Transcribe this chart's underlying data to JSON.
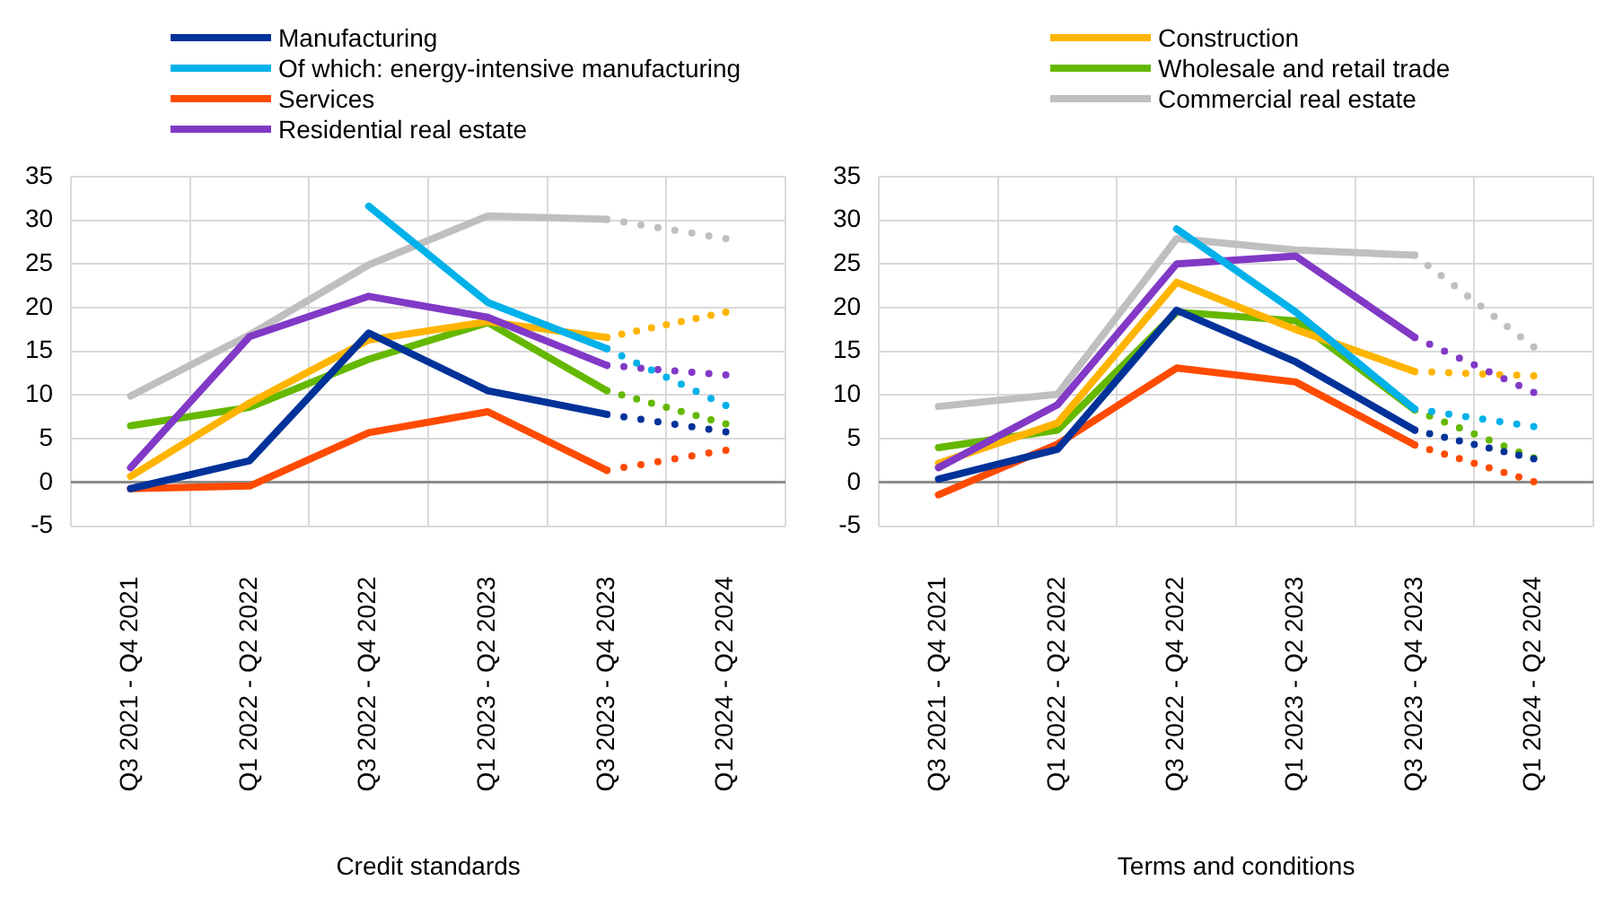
{
  "chart_data": [
    {
      "type": "line",
      "xlabel": "Credit standards",
      "categories": [
        "Q3 2021 - Q4 2021",
        "Q1 2022 - Q2 2022",
        "Q3 2022 - Q4 2022",
        "Q1 2023 - Q2 2023",
        "Q3 2023 - Q4 2023",
        "Q1 2024 - Q2 2024"
      ],
      "ylim": [
        -5,
        35
      ],
      "yticks": [
        -5,
        0,
        5,
        10,
        15,
        20,
        25,
        30,
        35
      ],
      "grid": true,
      "legend": "top",
      "line_style": "solid",
      "series": [
        {
          "name": "Manufacturing",
          "color": "#003299",
          "values": [
            -0.7,
            2.5,
            17.1,
            10.5,
            7.8,
            null
          ]
        },
        {
          "name": "Of which: energy-intensive manufacturing",
          "color": "#00b1ea",
          "values": [
            null,
            null,
            31.6,
            20.6,
            15.3,
            null
          ]
        },
        {
          "name": "Services",
          "color": "#ff4b00",
          "values": [
            -0.7,
            -0.4,
            5.7,
            8.1,
            1.4,
            null
          ]
        },
        {
          "name": "Residential real estate",
          "color": "#8139c6",
          "values": [
            1.7,
            16.7,
            21.3,
            18.9,
            13.4,
            null
          ]
        },
        {
          "name": "Construction",
          "color": "#ffb400",
          "values": [
            0.7,
            9.1,
            16.3,
            18.4,
            16.6,
            null
          ]
        },
        {
          "name": "Wholesale and retail trade",
          "color": "#65b800",
          "values": [
            6.5,
            8.6,
            14.1,
            18.3,
            10.5,
            null
          ]
        },
        {
          "name": "Commercial real estate",
          "color": "#bfbfbf",
          "values": [
            9.9,
            16.9,
            24.9,
            30.5,
            30.1,
            null
          ]
        },
        {
          "color": "#003299",
          "line_style": "dotted",
          "values": [
            null,
            null,
            null,
            null,
            7.8,
            5.8
          ]
        },
        {
          "color": "#00b1ea",
          "line_style": "dotted",
          "values": [
            null,
            null,
            null,
            null,
            15.3,
            8.8
          ]
        },
        {
          "color": "#ff4b00",
          "line_style": "dotted",
          "values": [
            null,
            null,
            null,
            null,
            1.4,
            3.7
          ]
        },
        {
          "color": "#8139c6",
          "line_style": "dotted",
          "values": [
            null,
            null,
            null,
            null,
            13.4,
            12.3
          ]
        },
        {
          "color": "#ffb400",
          "line_style": "dotted",
          "values": [
            null,
            null,
            null,
            null,
            16.6,
            19.5
          ]
        },
        {
          "color": "#65b800",
          "line_style": "dotted",
          "values": [
            null,
            null,
            null,
            null,
            10.5,
            6.7
          ]
        },
        {
          "color": "#bfbfbf",
          "line_style": "dotted",
          "values": [
            null,
            null,
            null,
            null,
            30.1,
            27.9
          ]
        }
      ]
    },
    {
      "type": "line",
      "xlabel": "Terms and conditions",
      "categories": [
        "Q3 2021 - Q4 2021",
        "Q1 2022 - Q2 2022",
        "Q3 2022 - Q4 2022",
        "Q1 2023 - Q2 2023",
        "Q3 2023 - Q4 2023",
        "Q1 2024 - Q2 2024"
      ],
      "ylim": [
        -5,
        35
      ],
      "yticks": [
        -5,
        0,
        5,
        10,
        15,
        20,
        25,
        30,
        35
      ],
      "grid": true,
      "line_style": "solid",
      "series": [
        {
          "color": "#003299",
          "values": [
            0.4,
            3.8,
            19.7,
            13.8,
            6.0,
            null
          ]
        },
        {
          "color": "#00b1ea",
          "values": [
            null,
            null,
            29.0,
            19.5,
            8.4,
            null
          ]
        },
        {
          "color": "#ff4b00",
          "values": [
            -1.4,
            4.4,
            13.1,
            11.5,
            4.3,
            null
          ]
        },
        {
          "color": "#8139c6",
          "values": [
            1.7,
            8.9,
            25.0,
            25.9,
            16.6,
            null
          ]
        },
        {
          "color": "#ffb400",
          "values": [
            2.2,
            6.8,
            22.9,
            17.5,
            12.7,
            null
          ]
        },
        {
          "color": "#65b800",
          "values": [
            4.0,
            6.0,
            19.5,
            18.5,
            8.3,
            null
          ]
        },
        {
          "color": "#bfbfbf",
          "values": [
            8.7,
            10.1,
            27.9,
            26.6,
            26.0,
            null
          ]
        },
        {
          "color": "#003299",
          "line_style": "dotted",
          "values": [
            null,
            null,
            null,
            null,
            6.0,
            2.7
          ]
        },
        {
          "color": "#00b1ea",
          "line_style": "dotted",
          "values": [
            null,
            null,
            null,
            null,
            8.4,
            6.4
          ]
        },
        {
          "color": "#ff4b00",
          "line_style": "dotted",
          "values": [
            null,
            null,
            null,
            null,
            4.3,
            0.1
          ]
        },
        {
          "color": "#8139c6",
          "line_style": "dotted",
          "values": [
            null,
            null,
            null,
            null,
            16.6,
            10.3
          ]
        },
        {
          "color": "#ffb400",
          "line_style": "dotted",
          "values": [
            null,
            null,
            null,
            null,
            12.7,
            12.2
          ]
        },
        {
          "color": "#65b800",
          "line_style": "dotted",
          "values": [
            null,
            null,
            null,
            null,
            8.3,
            2.8
          ]
        },
        {
          "color": "#bfbfbf",
          "line_style": "dotted",
          "values": [
            null,
            null,
            null,
            null,
            26.0,
            15.5
          ]
        }
      ]
    }
  ]
}
